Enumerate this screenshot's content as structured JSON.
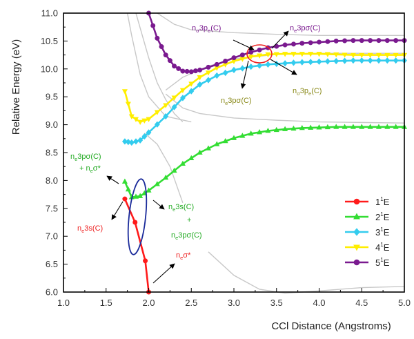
{
  "chart_data": {
    "type": "line",
    "title": "",
    "xlabel": "CCl Distance (Angstroms)",
    "ylabel": "Relative Energy (eV)",
    "xlim": [
      1.0,
      5.0
    ],
    "ylim": [
      6.0,
      11.0
    ],
    "x_ticks": [
      "1.0",
      "1.5",
      "2.0",
      "2.5",
      "3.0",
      "3.5",
      "4.0",
      "4.5",
      "5.0"
    ],
    "y_ticks": [
      "6.0",
      "6.5",
      "7.0",
      "7.5",
      "8.0",
      "8.5",
      "9.0",
      "9.5",
      "10.0",
      "10.5",
      "11.0"
    ],
    "grid": false,
    "legend_position": "bottom-right",
    "series": [
      {
        "name": "1",
        "name_sup": "1",
        "name_suffix": "E",
        "color": "#ff1a1a",
        "marker": "circle",
        "x": [
          1.72,
          1.84,
          1.96,
          2.0
        ],
        "y": [
          7.67,
          7.25,
          6.56,
          6.0
        ]
      },
      {
        "name": "2",
        "name_sup": "1",
        "name_suffix": "E",
        "color": "#33dd33",
        "marker": "triangle",
        "x": [
          1.72,
          1.8,
          1.9,
          2.0,
          2.2,
          2.4,
          2.6,
          2.8,
          3.0,
          3.2,
          3.4,
          3.6,
          3.8,
          4.0,
          4.2,
          4.4,
          4.6,
          4.8,
          5.0
        ],
        "y": [
          7.98,
          7.7,
          7.72,
          7.82,
          8.05,
          8.3,
          8.5,
          8.65,
          8.76,
          8.84,
          8.89,
          8.92,
          8.94,
          8.95,
          8.96,
          8.96,
          8.96,
          8.96,
          8.96
        ]
      },
      {
        "name": "3",
        "name_sup": "1",
        "name_suffix": "E",
        "color": "#33ccee",
        "marker": "diamond",
        "x": [
          1.72,
          1.8,
          1.9,
          2.0,
          2.2,
          2.4,
          2.6,
          2.8,
          3.0,
          3.2,
          3.4,
          3.6,
          3.8,
          4.0,
          4.2,
          4.4,
          4.6,
          4.8,
          5.0
        ],
        "y": [
          8.7,
          8.68,
          8.72,
          8.86,
          9.15,
          9.48,
          9.72,
          9.88,
          9.98,
          10.04,
          10.08,
          10.1,
          10.12,
          10.13,
          10.14,
          10.15,
          10.15,
          10.15,
          10.15
        ]
      },
      {
        "name": "4",
        "name_sup": "1",
        "name_suffix": "E",
        "color": "#ffee00",
        "marker": "triangle-down",
        "x": [
          1.72,
          1.8,
          1.9,
          2.0,
          2.2,
          2.4,
          2.6,
          2.8,
          3.0,
          3.2,
          3.4,
          3.6,
          3.8,
          4.0,
          4.2,
          4.4,
          4.6,
          4.8,
          5.0
        ],
        "y": [
          9.6,
          9.15,
          9.05,
          9.1,
          9.35,
          9.62,
          9.85,
          10.02,
          10.14,
          10.22,
          10.26,
          10.27,
          10.27,
          10.27,
          10.26,
          10.25,
          10.25,
          10.25,
          10.25
        ]
      },
      {
        "name": "5",
        "name_sup": "1",
        "name_suffix": "E",
        "color": "#7a1a8f",
        "marker": "circle",
        "x": [
          2.0,
          2.1,
          2.2,
          2.3,
          2.4,
          2.5,
          2.6,
          2.8,
          3.0,
          3.2,
          3.4,
          3.6,
          3.8,
          4.0,
          4.2,
          4.4,
          4.6,
          4.8,
          5.0
        ],
        "y": [
          11.0,
          10.55,
          10.25,
          10.05,
          9.96,
          9.95,
          9.98,
          10.08,
          10.2,
          10.3,
          10.38,
          10.43,
          10.46,
          10.48,
          10.5,
          10.51,
          10.51,
          10.51,
          10.51
        ]
      }
    ],
    "background_curves": [
      {
        "x": [
          1.75,
          1.8,
          1.9,
          2.0,
          2.2,
          2.5
        ],
        "y": [
          11.0,
          10.6,
          9.9,
          9.5,
          9.15,
          9.05
        ]
      },
      {
        "x": [
          1.85,
          2.0,
          2.1,
          2.2,
          2.3,
          2.4
        ],
        "y": [
          11.0,
          10.2,
          9.75,
          9.45,
          9.2,
          9.05
        ]
      },
      {
        "x": [
          2.2,
          2.4,
          2.6,
          3.0,
          3.5,
          4.0,
          4.5,
          5.0
        ],
        "y": [
          9.55,
          9.3,
          9.2,
          9.12,
          9.08,
          9.05,
          9.04,
          9.03
        ]
      },
      {
        "x": [
          2.1,
          2.3,
          2.5,
          2.7,
          3.0,
          3.5,
          4.0,
          4.5,
          5.0
        ],
        "y": [
          11.0,
          10.8,
          10.7,
          10.68,
          10.65,
          10.62,
          10.6,
          10.6,
          10.6
        ]
      },
      {
        "x": [
          2.2,
          2.4,
          2.7,
          3.0,
          3.5,
          4.0,
          4.5,
          5.0
        ],
        "y": [
          9.62,
          9.85,
          10.05,
          10.18,
          10.26,
          10.28,
          10.28,
          10.28
        ]
      },
      {
        "x": [
          1.95,
          2.1,
          2.25,
          2.4
        ],
        "y": [
          8.85,
          8.65,
          8.25,
          7.6
        ]
      },
      {
        "x": [
          2.7,
          3.0,
          3.3,
          3.6,
          4.0,
          4.5,
          5.0
        ],
        "y": [
          6.72,
          6.3,
          6.05,
          5.98,
          6.02,
          6.08,
          6.1
        ]
      }
    ],
    "annotations": [
      {
        "id": "n_sigma_3pe",
        "color": "#7a1a8f",
        "parts": [
          "n",
          "σ",
          "3p",
          "e",
          "(C)"
        ]
      },
      {
        "id": "n_e_3psigma_top",
        "color": "#7a1a8f",
        "parts": [
          "n",
          "e",
          "3pσ(C)"
        ]
      },
      {
        "id": "n_e_3psigma_mid",
        "color": "#8a8a1a",
        "parts": [
          "n",
          "e",
          "3pσ(C)"
        ]
      },
      {
        "id": "n_sigma_3pe_right",
        "color": "#8a8a1a",
        "parts": [
          "n",
          "σ",
          "3p",
          "e",
          "(C)"
        ]
      },
      {
        "id": "left_green_line1",
        "color": "#22aa22",
        "parts": [
          "n",
          "e",
          "3pσ(C)"
        ]
      },
      {
        "id": "left_green_line2",
        "color": "#22aa22",
        "parts": [
          "+ n",
          "e",
          "σ*"
        ]
      },
      {
        "id": "right_green_line1",
        "color": "#22aa22",
        "parts": [
          "n",
          "e",
          "3s(C)"
        ]
      },
      {
        "id": "right_green_line2",
        "color": "#22aa22",
        "parts": [
          "+"
        ]
      },
      {
        "id": "right_green_line3",
        "color": "#22aa22",
        "parts": [
          "n",
          "e",
          "3pσ(C)"
        ]
      },
      {
        "id": "red_left",
        "color": "#ee2222",
        "parts": [
          "n",
          "e",
          "3s(C)"
        ]
      },
      {
        "id": "red_right",
        "color": "#ee2222",
        "parts": [
          "n",
          "e",
          "σ*"
        ]
      }
    ]
  }
}
